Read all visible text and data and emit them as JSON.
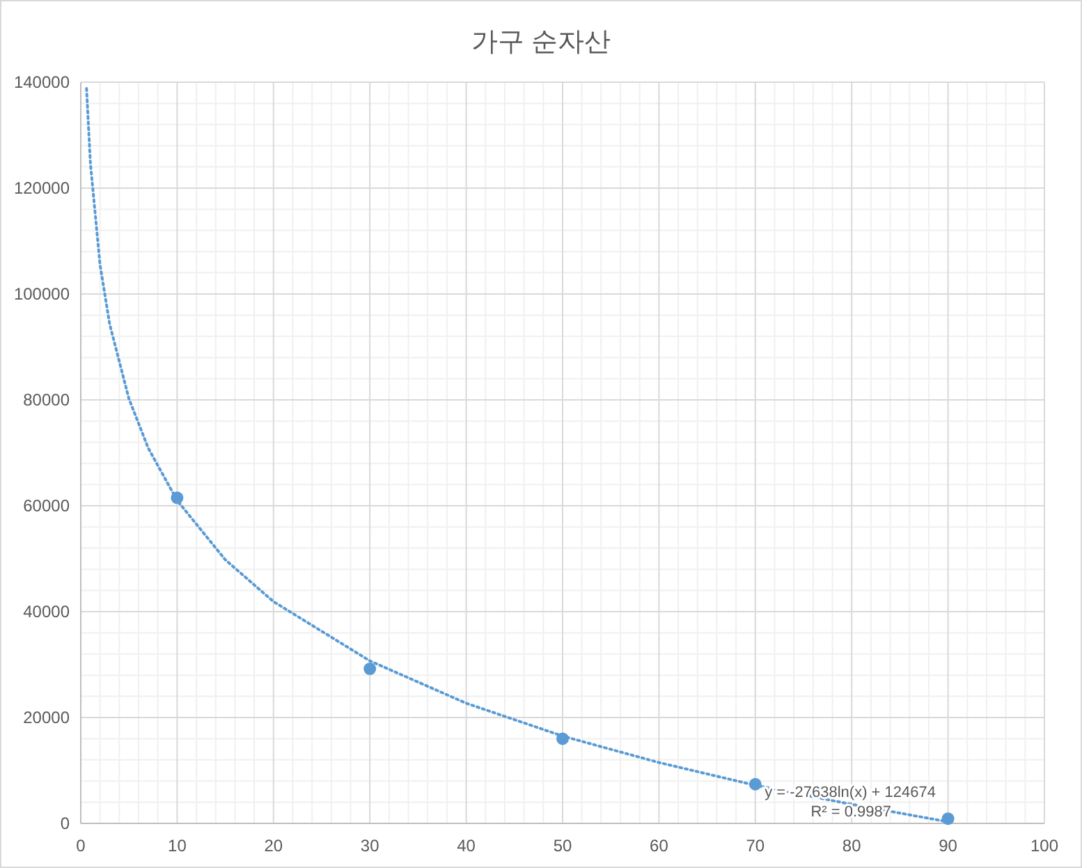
{
  "chart_data": {
    "type": "scatter",
    "title": "가구 순자산",
    "xlim": [
      0,
      100
    ],
    "xticks": [
      0,
      10,
      20,
      30,
      40,
      50,
      60,
      70,
      80,
      90,
      100
    ],
    "ylim": [
      0,
      140000
    ],
    "yticks": [
      0,
      20000,
      40000,
      60000,
      80000,
      100000,
      120000,
      140000
    ],
    "grid": true,
    "series": [
      {
        "color": "#5b9bd5",
        "marker": "circle",
        "x": [
          10,
          30,
          50,
          70,
          90
        ],
        "values": [
          61500,
          29200,
          16000,
          7400,
          900
        ]
      },
      {
        "type": "line",
        "color": "#5b9bd5",
        "marker": "none",
        "line_style": "dotted",
        "x": [
          0.6,
          1,
          2,
          3,
          5,
          7,
          10,
          15,
          20,
          30,
          40,
          50,
          60,
          70,
          80,
          90
        ],
        "values": [
          138800,
          124700,
          105500,
          94300,
          80200,
          70900,
          61000,
          49800,
          41900,
          30700,
          22700,
          16500,
          11500,
          7200,
          3600,
          300
        ]
      }
    ],
    "annotations": [
      "y = -27638ln(x) + 124674",
      "R² = 0.9987"
    ]
  }
}
